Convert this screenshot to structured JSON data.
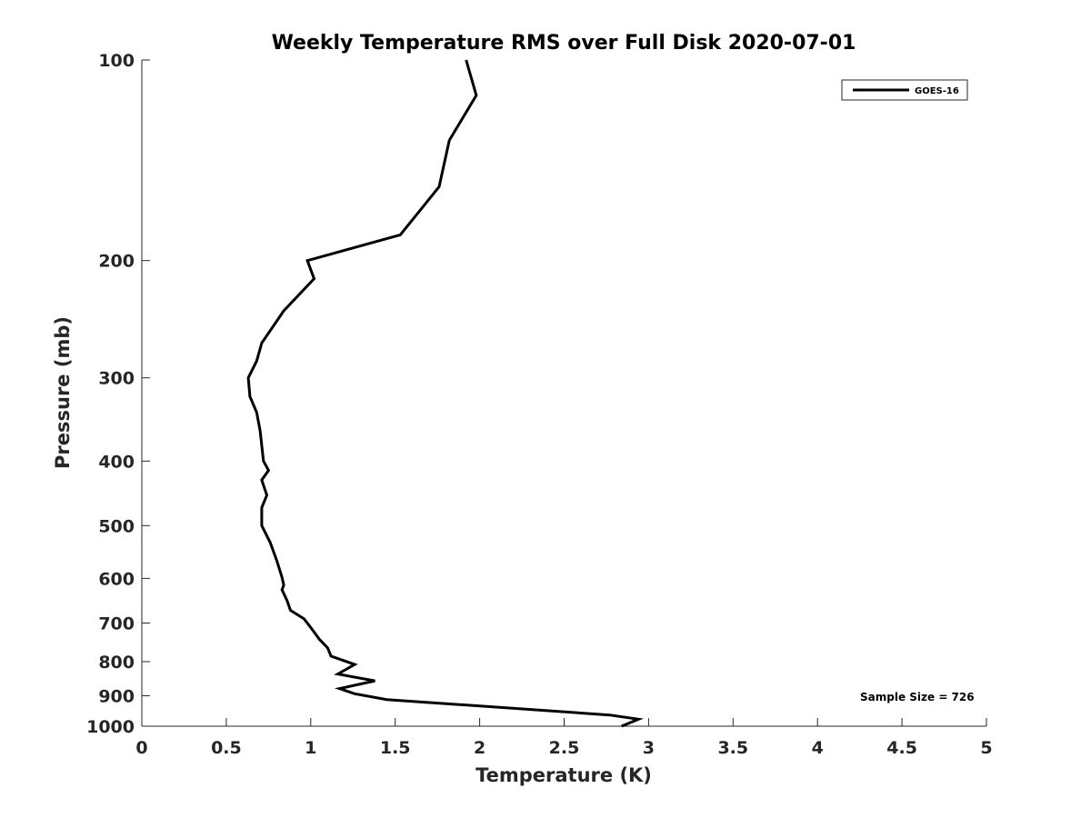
{
  "chart_data": {
    "type": "line",
    "title": "Weekly Temperature RMS over Full Disk 2020-07-01",
    "xlabel": "Temperature (K)",
    "ylabel": "Pressure (mb)",
    "xlim": [
      0,
      5
    ],
    "ylim": [
      100,
      1000
    ],
    "y_scale": "log",
    "y_reversed": true,
    "xticks": [
      0,
      0.5,
      1,
      1.5,
      2,
      2.5,
      3,
      3.5,
      4,
      4.5,
      5
    ],
    "xtick_labels": [
      "0",
      "0.5",
      "1",
      "1.5",
      "2",
      "2.5",
      "3",
      "3.5",
      "4",
      "4.5",
      "5"
    ],
    "yticks": [
      100,
      200,
      300,
      400,
      500,
      600,
      700,
      800,
      900,
      1000
    ],
    "ytick_labels": [
      "100",
      "200",
      "300",
      "400",
      "500",
      "600",
      "700",
      "800",
      "900",
      "1000"
    ],
    "grid": false,
    "legend_position": "top-right",
    "line_color": "#000000",
    "annotation": "Sample Size = 726",
    "series": [
      {
        "name": "GOES-16",
        "x": [
          1.92,
          1.98,
          1.82,
          1.76,
          1.53,
          0.98,
          1.02,
          0.84,
          0.71,
          0.68,
          0.63,
          0.64,
          0.68,
          0.7,
          0.72,
          0.75,
          0.71,
          0.74,
          0.71,
          0.71,
          0.76,
          0.8,
          0.83,
          0.84,
          0.83,
          0.86,
          0.88,
          0.96,
          1.0,
          1.05,
          1.1,
          1.12,
          1.26,
          1.16,
          1.38,
          1.17,
          1.26,
          1.45,
          2.77,
          2.94,
          2.84
        ],
        "y": [
          100,
          113,
          132,
          155,
          183,
          200,
          213,
          238,
          266,
          283,
          300,
          320,
          338,
          360,
          400,
          413,
          427,
          450,
          470,
          500,
          530,
          565,
          598,
          614,
          624,
          648,
          670,
          690,
          711,
          740,
          763,
          785,
          808,
          835,
          855,
          878,
          894,
          912,
          962,
          976,
          1000
        ]
      }
    ]
  }
}
